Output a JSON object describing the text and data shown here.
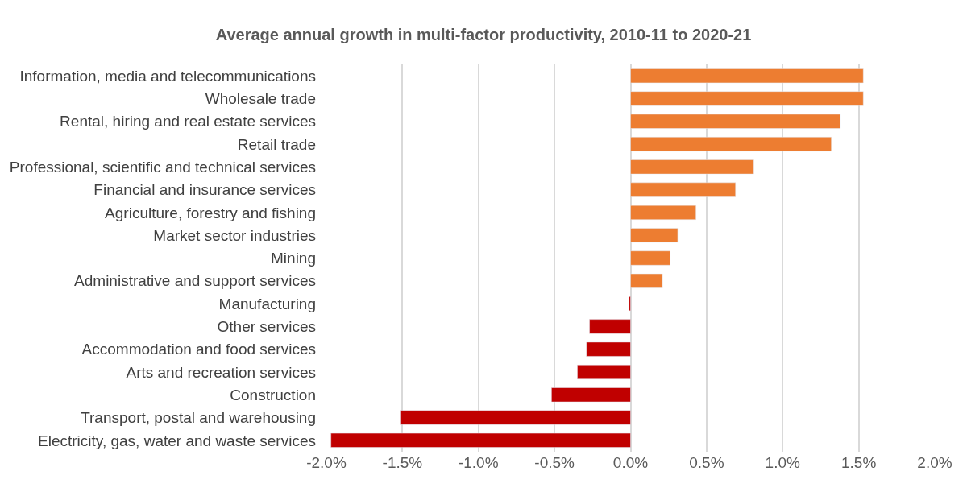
{
  "chart_data": {
    "type": "bar",
    "orientation": "horizontal",
    "title": "Average annual growth in multi-factor productivity, 2010-11 to 2020-21",
    "categories": [
      "Information, media and telecommunications",
      "Wholesale trade",
      "Rental, hiring and real estate services",
      "Retail trade",
      "Professional, scientific and technical services",
      "Financial and insurance services",
      "Agriculture, forestry and fishing",
      "Market sector industries",
      "Mining",
      "Administrative and support services",
      "Manufacturing",
      "Other services",
      "Accommodation and food services",
      "Arts and recreation services",
      "Construction",
      "Transport, postal and warehousing",
      "Electricity, gas, water and waste services"
    ],
    "values": [
      1.53,
      1.53,
      1.38,
      1.32,
      0.81,
      0.69,
      0.43,
      0.31,
      0.26,
      0.21,
      -0.01,
      -0.27,
      -0.29,
      -0.35,
      -0.52,
      -1.51,
      -1.97
    ],
    "colors": [
      "#ed7d31",
      "#ed7d31",
      "#ed7d31",
      "#ed7d31",
      "#ed7d31",
      "#ed7d31",
      "#ed7d31",
      "#ed7d31",
      "#ed7d31",
      "#ed7d31",
      "#c00000",
      "#c00000",
      "#c00000",
      "#c00000",
      "#c00000",
      "#c00000",
      "#c00000"
    ],
    "xlim": [
      -2,
      2
    ],
    "xticks": [
      {
        "value": -2,
        "label": "-2.0%"
      },
      {
        "value": -1.5,
        "label": "-1.5%"
      },
      {
        "value": -1,
        "label": "-1.0%"
      },
      {
        "value": -0.5,
        "label": "-0.5%"
      },
      {
        "value": 0,
        "label": "0.0%"
      },
      {
        "value": 0.5,
        "label": "0.5%"
      },
      {
        "value": 1,
        "label": "1.0%"
      },
      {
        "value": 1.5,
        "label": "1.5%"
      },
      {
        "value": 2,
        "label": "2.0%"
      }
    ],
    "grid": "x",
    "legend": false
  }
}
